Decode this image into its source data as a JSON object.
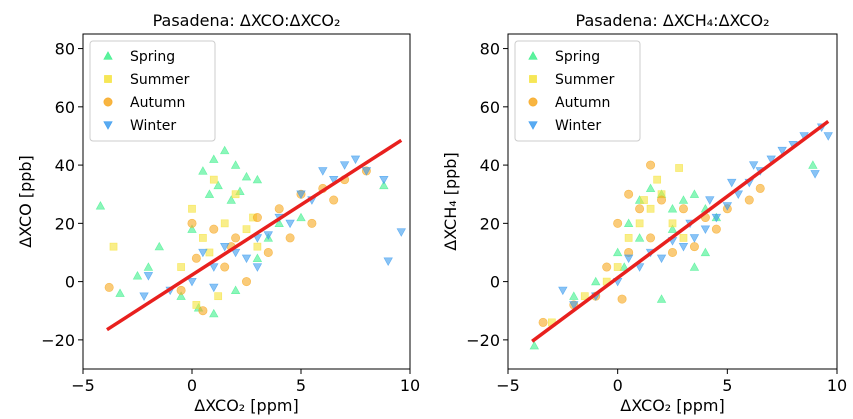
{
  "chart_data": [
    {
      "type": "scatter",
      "title": "Pasadena: ΔXCO:ΔXCO₂",
      "xlabel": "ΔXCO₂ [ppm]",
      "ylabel": "ΔXCO [ppb]",
      "xlim": [
        -5,
        10
      ],
      "ylim": [
        -30,
        85
      ],
      "xticks": [
        -5,
        0,
        5,
        10
      ],
      "yticks": [
        -20,
        0,
        20,
        40,
        60,
        80
      ],
      "grid": false,
      "legend": "top-left",
      "series": [
        {
          "name": "Spring",
          "marker": "triangle-up",
          "color": "#3ef08c",
          "points": [
            [
              -4.2,
              26
            ],
            [
              0.5,
              38
            ],
            [
              1.0,
              42
            ],
            [
              1.5,
              45
            ],
            [
              2.0,
              40
            ],
            [
              2.5,
              36
            ],
            [
              3.0,
              35
            ],
            [
              1.2,
              33
            ],
            [
              0.8,
              30
            ],
            [
              2.2,
              31
            ],
            [
              -1.5,
              12
            ],
            [
              -2.0,
              5
            ],
            [
              -3.3,
              -4
            ],
            [
              -0.5,
              -5
            ],
            [
              0.3,
              -9
            ],
            [
              1.0,
              -11
            ],
            [
              2.0,
              -3
            ],
            [
              3.0,
              8
            ],
            [
              4.0,
              20
            ],
            [
              5.0,
              22
            ],
            [
              8.8,
              33
            ],
            [
              -2.5,
              2
            ],
            [
              0.0,
              18
            ],
            [
              1.8,
              28
            ],
            [
              3.5,
              15
            ]
          ]
        },
        {
          "name": "Summer",
          "marker": "square",
          "color": "#f5e23a",
          "points": [
            [
              -3.6,
              12
            ],
            [
              0.0,
              25
            ],
            [
              1.0,
              35
            ],
            [
              2.0,
              30
            ],
            [
              0.5,
              15
            ],
            [
              1.5,
              20
            ],
            [
              2.5,
              18
            ],
            [
              3.0,
              12
            ],
            [
              -0.5,
              5
            ],
            [
              0.2,
              -8
            ],
            [
              1.2,
              -5
            ],
            [
              2.8,
              22
            ],
            [
              0.8,
              10
            ]
          ]
        },
        {
          "name": "Autumn",
          "marker": "circle",
          "color": "#f7a820",
          "points": [
            [
              -3.8,
              -2
            ],
            [
              0.0,
              20
            ],
            [
              1.0,
              18
            ],
            [
              2.0,
              15
            ],
            [
              3.0,
              22
            ],
            [
              4.0,
              25
            ],
            [
              5.0,
              30
            ],
            [
              6.0,
              32
            ],
            [
              7.0,
              35
            ],
            [
              8.0,
              38
            ],
            [
              1.5,
              5
            ],
            [
              2.5,
              0
            ],
            [
              -0.5,
              -3
            ],
            [
              0.5,
              -10
            ],
            [
              3.5,
              10
            ],
            [
              4.5,
              15
            ],
            [
              5.5,
              20
            ],
            [
              6.5,
              28
            ],
            [
              0.2,
              8
            ],
            [
              1.8,
              12
            ]
          ]
        },
        {
          "name": "Winter",
          "marker": "triangle-down",
          "color": "#3b9bef",
          "points": [
            [
              9.6,
              17
            ],
            [
              9.0,
              7
            ],
            [
              8.8,
              35
            ],
            [
              8.0,
              38
            ],
            [
              7.0,
              40
            ],
            [
              6.0,
              38
            ],
            [
              5.0,
              30
            ],
            [
              4.0,
              22
            ],
            [
              3.0,
              15
            ],
            [
              2.0,
              10
            ],
            [
              1.0,
              5
            ],
            [
              0.0,
              0
            ],
            [
              -1.0,
              -3
            ],
            [
              -2.0,
              2
            ],
            [
              0.5,
              10
            ],
            [
              1.5,
              12
            ],
            [
              2.5,
              8
            ],
            [
              3.5,
              16
            ],
            [
              4.5,
              20
            ],
            [
              5.5,
              28
            ],
            [
              6.5,
              35
            ],
            [
              7.5,
              42
            ],
            [
              -2.2,
              -5
            ],
            [
              1.0,
              -2
            ],
            [
              3.0,
              5
            ]
          ]
        }
      ],
      "fit_line": {
        "color": "#e8201e",
        "x": [
          -3.9,
          9.6
        ],
        "y": [
          -16.5,
          48.5
        ]
      }
    },
    {
      "type": "scatter",
      "title": "Pasadena: ΔXCH₄:ΔXCO₂",
      "xlabel": "ΔXCO₂ [ppm]",
      "ylabel": "ΔXCH₄ [ppb]",
      "xlim": [
        -5,
        10
      ],
      "ylim": [
        -30,
        85
      ],
      "xticks": [
        -5,
        0,
        5,
        10
      ],
      "yticks": [
        -20,
        0,
        20,
        40,
        60,
        80
      ],
      "grid": false,
      "legend": "top-left",
      "series": [
        {
          "name": "Spring",
          "marker": "triangle-up",
          "color": "#3ef08c",
          "points": [
            [
              -3.8,
              -22
            ],
            [
              8.9,
              40
            ],
            [
              0.5,
              20
            ],
            [
              1.0,
              28
            ],
            [
              1.5,
              32
            ],
            [
              2.0,
              30
            ],
            [
              2.5,
              25
            ],
            [
              3.0,
              28
            ],
            [
              3.5,
              30
            ],
            [
              4.0,
              25
            ],
            [
              4.5,
              22
            ],
            [
              0.0,
              10
            ],
            [
              -1.0,
              0
            ],
            [
              -2.0,
              -5
            ],
            [
              2.0,
              -6
            ],
            [
              3.5,
              5
            ],
            [
              1.0,
              15
            ],
            [
              2.5,
              18
            ],
            [
              4.0,
              10
            ],
            [
              0.3,
              5
            ]
          ]
        },
        {
          "name": "Summer",
          "marker": "square",
          "color": "#f5e23a",
          "points": [
            [
              -3.0,
              -14
            ],
            [
              2.8,
              39
            ],
            [
              2.0,
              30
            ],
            [
              1.5,
              25
            ],
            [
              1.0,
              20
            ],
            [
              0.5,
              15
            ],
            [
              0.0,
              5
            ],
            [
              -0.5,
              0
            ],
            [
              2.5,
              20
            ],
            [
              3.0,
              15
            ],
            [
              1.2,
              28
            ],
            [
              -1.5,
              -5
            ],
            [
              1.8,
              35
            ]
          ]
        },
        {
          "name": "Autumn",
          "marker": "circle",
          "color": "#f7a820",
          "points": [
            [
              -3.4,
              -14
            ],
            [
              1.5,
              40
            ],
            [
              0.5,
              30
            ],
            [
              1.0,
              25
            ],
            [
              0.0,
              20
            ],
            [
              2.0,
              28
            ],
            [
              3.0,
              25
            ],
            [
              4.0,
              22
            ],
            [
              5.0,
              25
            ],
            [
              6.0,
              28
            ],
            [
              6.5,
              32
            ],
            [
              0.5,
              10
            ],
            [
              -0.5,
              5
            ],
            [
              -1.0,
              -5
            ],
            [
              1.5,
              15
            ],
            [
              2.5,
              10
            ],
            [
              3.5,
              12
            ],
            [
              4.5,
              18
            ],
            [
              -2.0,
              -8
            ],
            [
              0.2,
              -6
            ]
          ]
        },
        {
          "name": "Winter",
          "marker": "triangle-down",
          "color": "#3b9bef",
          "points": [
            [
              9.6,
              50
            ],
            [
              9.0,
              37
            ],
            [
              9.3,
              53
            ],
            [
              8.5,
              50
            ],
            [
              8.0,
              47
            ],
            [
              7.5,
              45
            ],
            [
              7.0,
              42
            ],
            [
              6.5,
              38
            ],
            [
              6.0,
              34
            ],
            [
              5.5,
              30
            ],
            [
              5.0,
              26
            ],
            [
              4.5,
              22
            ],
            [
              4.0,
              18
            ],
            [
              3.5,
              15
            ],
            [
              3.0,
              12
            ],
            [
              2.0,
              8
            ],
            [
              1.0,
              5
            ],
            [
              0.0,
              0
            ],
            [
              -1.0,
              -5
            ],
            [
              -2.0,
              -8
            ],
            [
              -2.5,
              -3
            ],
            [
              0.5,
              8
            ],
            [
              1.5,
              10
            ],
            [
              2.5,
              14
            ],
            [
              3.3,
              20
            ],
            [
              4.2,
              28
            ],
            [
              5.2,
              34
            ],
            [
              6.2,
              40
            ]
          ]
        }
      ],
      "fit_line": {
        "color": "#e8201e",
        "x": [
          -3.9,
          9.6
        ],
        "y": [
          -20.5,
          55
        ]
      }
    }
  ]
}
